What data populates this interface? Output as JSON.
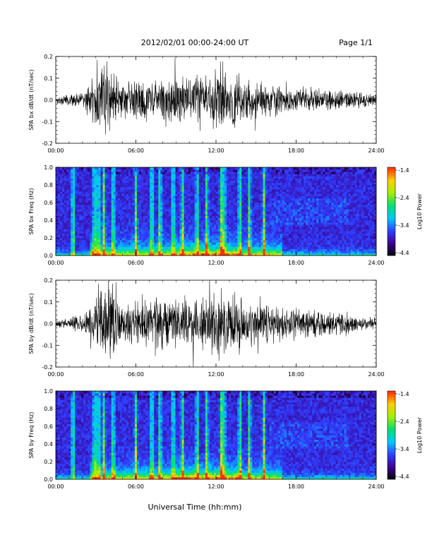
{
  "header": {
    "date_range": "2012/02/01   00:00-24:00 UT",
    "page": "Page 1/1"
  },
  "footer": {
    "xlabel": "Universal Time (hh:mm)"
  },
  "colors": {
    "trace": "#000000",
    "colormap": [
      "#000000",
      "#3c0090",
      "#2f3fff",
      "#00c8ff",
      "#00e070",
      "#a0f000",
      "#ffd000",
      "#ff3000"
    ]
  },
  "chart_data": [
    {
      "type": "line",
      "ylabel": "SPA bx dB/dt (nT/sec)",
      "xlim": [
        "00:00",
        "24:00"
      ],
      "ylim": [
        -0.2,
        0.2
      ],
      "x_ticks": [
        "00:00",
        "06:00",
        "12:00",
        "18:00",
        "24:00"
      ],
      "y_ticks": [
        "-0.2",
        "-0.1",
        "0.0",
        "0.1",
        "0.2"
      ],
      "envelope": {
        "hours": [
          0,
          1,
          2,
          2.5,
          3,
          3.5,
          4,
          4.5,
          5,
          6,
          6.5,
          7,
          8,
          9,
          10,
          11,
          11.5,
          12,
          12.5,
          13,
          13.5,
          14,
          15,
          16,
          17,
          18,
          19,
          20,
          21,
          22,
          23,
          24
        ],
        "amplitude": [
          0.02,
          0.03,
          0.04,
          0.1,
          0.2,
          0.18,
          0.2,
          0.15,
          0.1,
          0.11,
          0.13,
          0.1,
          0.12,
          0.13,
          0.12,
          0.13,
          0.14,
          0.18,
          0.16,
          0.13,
          0.15,
          0.12,
          0.1,
          0.09,
          0.08,
          0.07,
          0.06,
          0.06,
          0.055,
          0.05,
          0.04,
          0.03
        ]
      }
    },
    {
      "type": "heatmap",
      "ylabel": "SPA bx Freq (Hz)",
      "colorbar_label": "Log10 Power",
      "xlim": [
        "00:00",
        "24:00"
      ],
      "ylim": [
        0.0,
        1.0
      ],
      "x_ticks": [
        "00:00",
        "06:00",
        "12:00",
        "18:00",
        "24:00"
      ],
      "y_ticks": [
        "0.0",
        "0.2",
        "0.4",
        "0.6",
        "0.8",
        "1.0"
      ],
      "colorbar_range": [
        -4.4,
        -1.4
      ],
      "colorbar_ticks": [
        "-1.4",
        "-2.4",
        "-3.4",
        "-4.4"
      ],
      "bright_streak_hours": [
        1.3,
        2.9,
        3.2,
        3.6,
        4.3,
        6.0,
        7.2,
        7.8,
        8.8,
        9.5,
        10.6,
        11.3,
        12.4,
        12.6,
        13.8,
        14.5,
        15.6
      ]
    },
    {
      "type": "line",
      "ylabel": "SPA by dB/dt (nT/sec)",
      "xlim": [
        "00:00",
        "24:00"
      ],
      "ylim": [
        -0.2,
        0.2
      ],
      "x_ticks": [
        "00:00",
        "06:00",
        "12:00",
        "18:00",
        "24:00"
      ],
      "y_ticks": [
        "-0.2",
        "-0.1",
        "0.0",
        "0.1",
        "0.2"
      ],
      "envelope": {
        "hours": [
          0,
          1,
          2,
          2.5,
          3,
          3.5,
          4,
          4.5,
          5,
          6,
          6.5,
          7,
          8,
          9,
          10,
          11,
          11.5,
          12,
          12.5,
          13,
          13.5,
          14,
          15,
          16,
          17,
          18,
          19,
          20,
          21,
          22,
          23,
          24
        ],
        "amplitude": [
          0.02,
          0.035,
          0.05,
          0.12,
          0.2,
          0.2,
          0.2,
          0.18,
          0.1,
          0.12,
          0.14,
          0.12,
          0.14,
          0.15,
          0.14,
          0.15,
          0.16,
          0.2,
          0.17,
          0.14,
          0.15,
          0.13,
          0.12,
          0.1,
          0.09,
          0.08,
          0.075,
          0.07,
          0.065,
          0.06,
          0.04,
          0.03
        ]
      }
    },
    {
      "type": "heatmap",
      "ylabel": "SPA by Freq (Hz)",
      "colorbar_label": "Log10 Power",
      "xlim": [
        "00:00",
        "24:00"
      ],
      "ylim": [
        0.0,
        1.0
      ],
      "x_ticks": [
        "00:00",
        "06:00",
        "12:00",
        "18:00",
        "24:00"
      ],
      "y_ticks": [
        "0.0",
        "0.2",
        "0.4",
        "0.6",
        "0.8",
        "1.0"
      ],
      "colorbar_range": [
        -4.4,
        -1.4
      ],
      "colorbar_ticks": [
        "-1.4",
        "-2.4",
        "-3.4",
        "-4.4"
      ],
      "bright_streak_hours": [
        1.3,
        2.9,
        3.2,
        3.6,
        4.3,
        6.0,
        7.2,
        7.8,
        8.8,
        9.5,
        10.6,
        11.3,
        12.4,
        12.6,
        13.8,
        14.5,
        15.6
      ]
    }
  ]
}
